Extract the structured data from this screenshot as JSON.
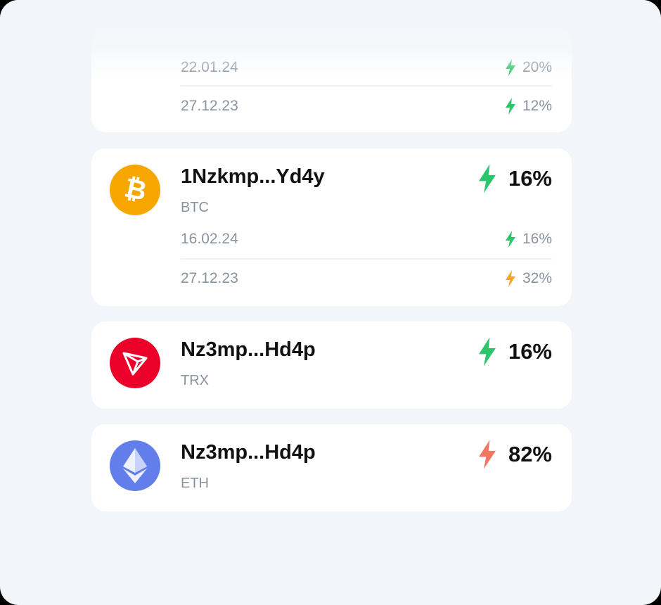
{
  "colors": {
    "green": "#2bc66a",
    "orange": "#f5a623",
    "red": "#f47560",
    "background": "#f2f6fa"
  },
  "partial_card": {
    "rows": [
      {
        "date": "22.01.24",
        "value": "20%",
        "icon": "bolt-icon",
        "color": "green"
      },
      {
        "date": "27.12.23",
        "value": "12%",
        "icon": "bolt-icon",
        "color": "green"
      }
    ]
  },
  "wallets": [
    {
      "address": "1Nzkmp...Yd4y",
      "coin": "BTC",
      "icon": "bitcoin-icon",
      "percent": "16%",
      "bolt_color": "green",
      "rows": [
        {
          "date": "16.02.24",
          "value": "16%",
          "color": "green"
        },
        {
          "date": "27.12.23",
          "value": "32%",
          "color": "orange"
        }
      ]
    },
    {
      "address": "Nz3mp...Hd4p",
      "coin": "TRX",
      "icon": "tron-icon",
      "percent": "16%",
      "bolt_color": "green"
    },
    {
      "address": "Nz3mp...Hd4p",
      "coin": "ETH",
      "icon": "ethereum-icon",
      "percent": "82%",
      "bolt_color": "red"
    }
  ]
}
